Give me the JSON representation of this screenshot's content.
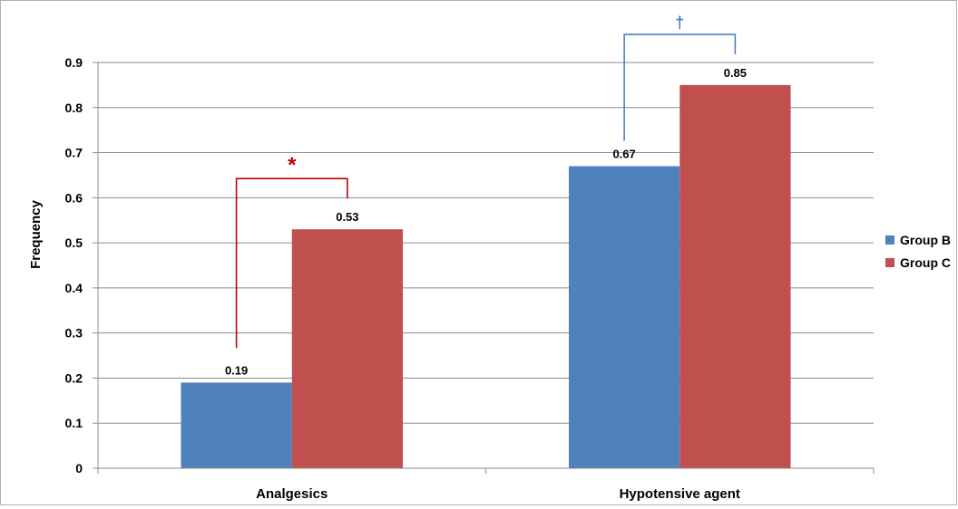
{
  "chart_data": {
    "type": "bar",
    "categories": [
      "Analgesics",
      "Hypotensive agent"
    ],
    "series": [
      {
        "name": "Group B",
        "color": "#4F81BD",
        "values": [
          0.19,
          0.67
        ]
      },
      {
        "name": "Group C",
        "color": "#C0504D",
        "values": [
          0.53,
          0.85
        ]
      }
    ],
    "title": "",
    "xlabel": "",
    "ylabel": "Frequency",
    "ylim": [
      0,
      0.9
    ],
    "yticks": [
      "0",
      "0.1",
      "0.2",
      "0.3",
      "0.4",
      "0.5",
      "0.6",
      "0.7",
      "0.8",
      "0.9"
    ],
    "data_labels": [
      [
        "0.19",
        "0.67"
      ],
      [
        "0.53",
        "0.85"
      ]
    ],
    "grid": true,
    "legend": "right",
    "annotations": [
      {
        "text": "*",
        "category": "Analgesics",
        "color": "#C00000"
      },
      {
        "text": "†",
        "category": "Hypotensive agent",
        "color": "#4F81BD"
      }
    ]
  }
}
